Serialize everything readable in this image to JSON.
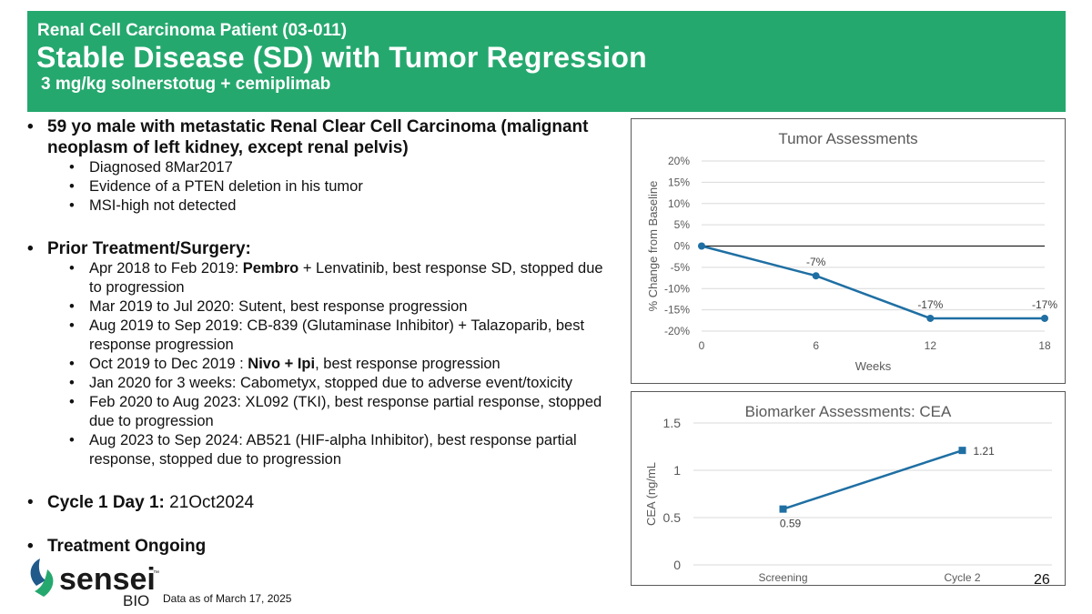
{
  "header": {
    "supertitle": "Renal Cell Carcinoma Patient (03-011)",
    "title": "Stable Disease (SD) with Tumor Regression",
    "subtitle": "3 mg/kg solnerstotug + cemiplimab"
  },
  "bullets": {
    "patient": {
      "text": "59 yo male with metastatic Renal Clear Cell Carcinoma (malignant neoplasm of left kidney, except renal pelvis)",
      "subitems": [
        "Diagnosed 8Mar2017",
        "Evidence of a PTEN deletion in his tumor",
        "MSI-high not detected"
      ]
    },
    "prior": {
      "label": "Prior Treatment/Surgery:",
      "i0": {
        "pre": "Apr 2018 to Feb 2019: ",
        "b1": "Pembro",
        "post": " + Lenvatinib, best response SD, stopped due to progression"
      },
      "i1": "Mar 2019 to Jul 2020: Sutent, best response progression",
      "i2": "Aug 2019 to Sep 2019: CB-839 (Glutaminase Inhibitor) + Talazoparib, best response progression",
      "i3": {
        "pre": "Oct 2019 to Dec 2019 : ",
        "b1": "Nivo + Ipi",
        "post": ", best response progression"
      },
      "i4": "Jan 2020 for 3 weeks: Cabometyx, stopped due to adverse event/toxicity",
      "i5": "Feb 2020 to Aug 2023: XL092 (TKI), best response partial response, stopped due to progression",
      "i6": "Aug 2023 to Sep 2024: AB521 (HIF-alpha Inhibitor), best response partial response, stopped due to progression"
    },
    "cycle": {
      "label": "Cycle 1 Day 1:",
      "value": " 21Oct2024"
    },
    "ongoing": "Treatment Ongoing"
  },
  "chart_data": [
    {
      "type": "line",
      "title": "Tumor Assessments",
      "xlabel": "Weeks",
      "ylabel": "% Change from Baseline",
      "x": [
        0,
        6,
        12,
        18
      ],
      "xticks": [
        "0",
        "6",
        "12",
        "18"
      ],
      "values": [
        0,
        -7,
        -17,
        -17
      ],
      "data_labels": [
        "",
        "-7%",
        "-17%",
        "-17%"
      ],
      "yticks": [
        "20%",
        "15%",
        "10%",
        "5%",
        "0%",
        "-5%",
        "-10%",
        "-15%",
        "-20%"
      ],
      "ylim": [
        -20,
        20
      ],
      "xlim": [
        0,
        18
      ],
      "color": "#1f6fa3",
      "grid": true
    },
    {
      "type": "line",
      "title": "Biomarker Assessments: CEA",
      "xlabel": "",
      "ylabel": "CEA (ng/mL",
      "categories": [
        "Screening",
        "Cycle 2"
      ],
      "values": [
        0.59,
        1.21
      ],
      "data_labels": [
        "0.59",
        "1.21"
      ],
      "yticks": [
        "1.5",
        "1",
        "0.5",
        "0"
      ],
      "ylim": [
        0,
        1.5
      ],
      "color": "#1f6fa3",
      "grid": true
    }
  ],
  "footer": {
    "brand": "sensei",
    "tm": "™",
    "bio": "BIO",
    "note": "Data as of March 17, 2025",
    "page": "26"
  }
}
